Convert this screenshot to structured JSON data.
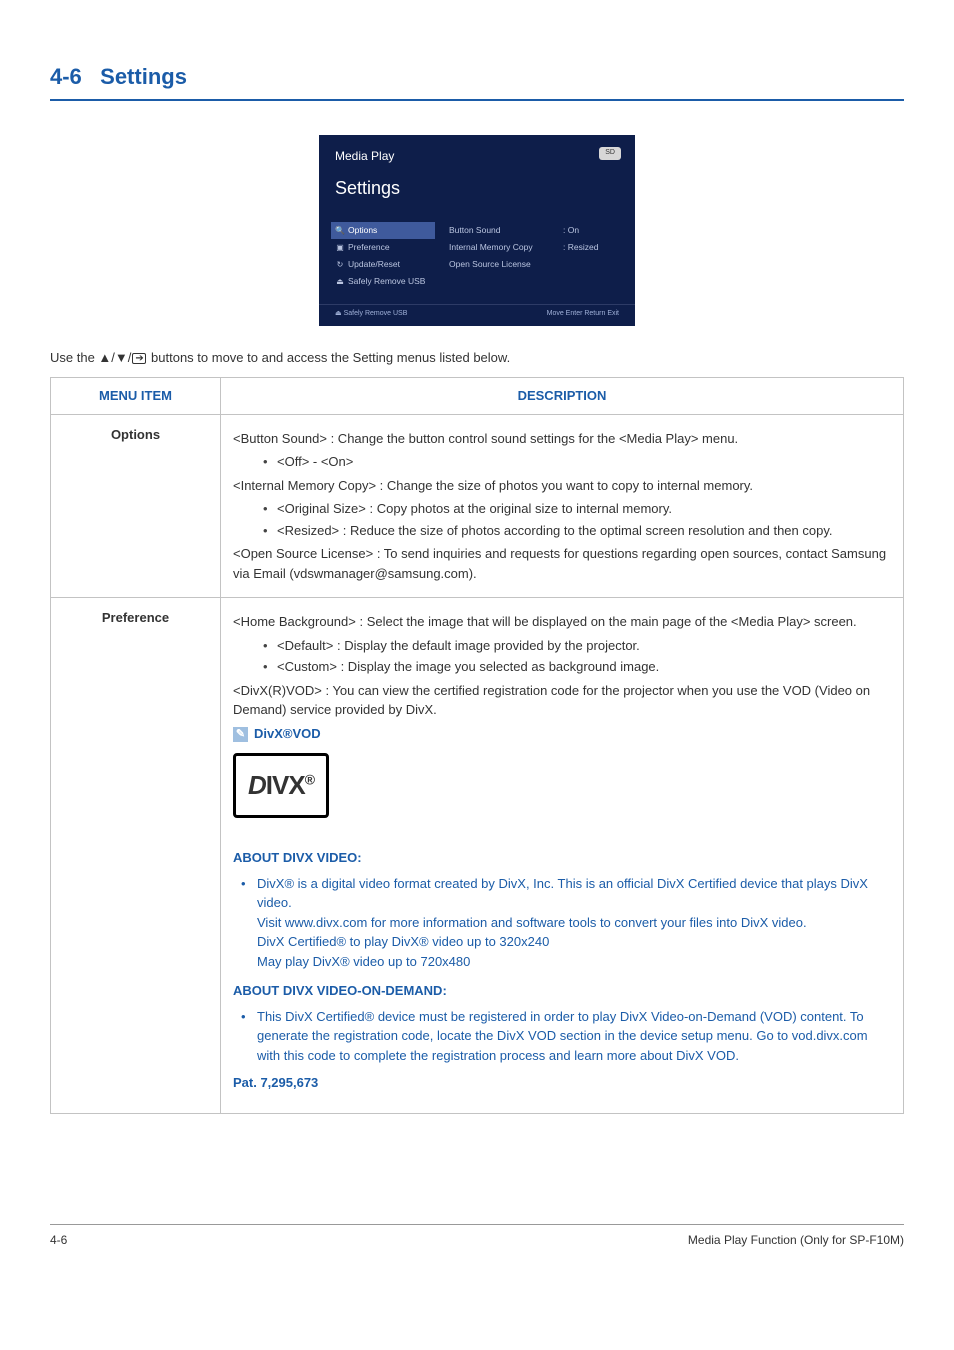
{
  "heading": {
    "number": "4-6",
    "title": "Settings"
  },
  "screenshot": {
    "app_title": "Media Play",
    "page_title": "Settings",
    "sd_label": "SD",
    "left_items": [
      {
        "icon": "search",
        "label": "Options",
        "selected": true
      },
      {
        "icon": "pref",
        "label": "Preference",
        "selected": false
      },
      {
        "icon": "update",
        "label": "Update/Reset",
        "selected": false
      },
      {
        "icon": "usb",
        "label": "Safely Remove USB",
        "selected": false
      }
    ],
    "mid_items": [
      "Button Sound",
      "Internal Memory Copy",
      "Open Source License"
    ],
    "right_items": [
      ": On",
      ": Resized",
      ""
    ],
    "footer_left": "Safely Remove USB",
    "footer_right": "Move   Enter   Return   Exit"
  },
  "intro": {
    "prefix": "Use the ",
    "suffix": " buttons to move to and access the Setting menus listed below."
  },
  "table": {
    "headers": {
      "menu_item": "MENU ITEM",
      "description": "DESCRIPTION"
    },
    "rows": {
      "options": {
        "label": "Options",
        "button_sound": "<Button Sound> : Change the button control sound settings for the <Media Play> menu.",
        "button_sound_val": "<Off> - <On>",
        "internal_copy": "<Internal Memory Copy> : Change the size of photos you want to copy to internal memory.",
        "internal_copy_b1": "<Original Size> : Copy photos at the original size to internal memory.",
        "internal_copy_b2": "<Resized> : Reduce the size of photos according to the optimal screen resolution and then copy.",
        "open_source": "<Open Source License> : To send inquiries and requests for questions regarding open sources, contact Samsung via Email (vdswmanager@samsung.com)."
      },
      "preference": {
        "label": "Preference",
        "home_bg": "<Home Background> : Select the image that will be displayed on the main page of the <Media Play> screen.",
        "home_bg_b1": "<Default> : Display the default image provided by the projector.",
        "home_bg_b2": "<Custom> : Display the image you selected as background image.",
        "divx_vod": "<DivX(R)VOD> : You can view the certified registration code for the projector when you use the VOD (Video on Demand) service provided by DivX.",
        "divx_note_title": "DivX®VOD",
        "about_heading1": "ABOUT DIVX VIDEO:",
        "about1_l1": "DivX® is a digital video format created by DivX, Inc. This is an official DivX Certified device that plays DivX video.",
        "about1_l2": "Visit www.divx.com for more information and software tools to convert your files into DivX video.",
        "about1_l3": "DivX Certified® to play DivX® video up to 320x240",
        "about1_l4": "May play DivX® video up to 720x480",
        "about_heading2": "ABOUT DIVX VIDEO-ON-DEMAND:",
        "about2_l1": "This DivX Certified® device must be registered in order to play DivX Video-on-Demand (VOD) content. To generate the registration code, locate the DivX VOD section in the device setup menu. Go to vod.divx.com with this code to complete the registration process and learn more about DivX VOD.",
        "patent": "Pat. 7,295,673"
      }
    }
  },
  "footer": {
    "left": "4-6",
    "right": "Media Play Function (Only for SP-F10M)"
  }
}
